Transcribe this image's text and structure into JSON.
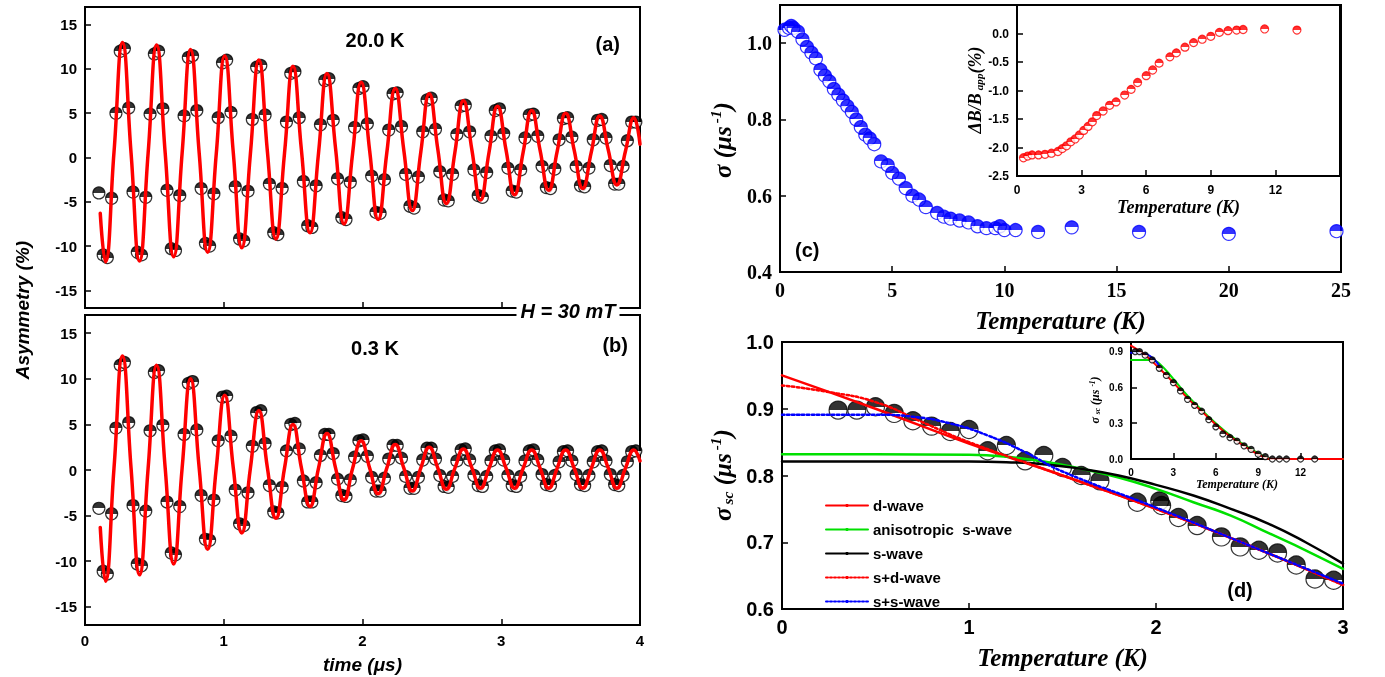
{
  "chart_data": [
    {
      "type": "scatter",
      "ylabel": "Asymmetry (%)",
      "annotations": [
        "20.0 K",
        "(a)",
        "H = 30 mT"
      ],
      "xlim": [
        0,
        4
      ],
      "xticks": [
        0,
        1,
        2,
        3,
        4
      ],
      "ylim": [
        -17,
        17
      ],
      "yticks": [
        -15,
        -10,
        -5,
        0,
        5,
        10,
        15
      ],
      "tick_labels": "y",
      "x": [
        0.1,
        0.131,
        0.161,
        0.192,
        0.223,
        0.254,
        0.284,
        0.315,
        0.346,
        0.377,
        0.407,
        0.438,
        0.469,
        0.5,
        0.53,
        0.561,
        0.591,
        0.622,
        0.652,
        0.683,
        0.714,
        0.745,
        0.775,
        0.806,
        0.837,
        0.868,
        0.898,
        0.929,
        0.96,
        0.991,
        1.021,
        1.052,
        1.083,
        1.114,
        1.144,
        1.175,
        1.206,
        1.237,
        1.267,
        1.298,
        1.329,
        1.36,
        1.39,
        1.421,
        1.452,
        1.483,
        1.513,
        1.544,
        1.574,
        1.605,
        1.635,
        1.666,
        1.697,
        1.728,
        1.758,
        1.789,
        1.82,
        1.851,
        1.881,
        1.912,
        1.943,
        1.974,
        2.004,
        2.035,
        2.066,
        2.097,
        2.127,
        2.158,
        2.189,
        2.22,
        2.25,
        2.281,
        2.311,
        2.342,
        2.372,
        2.403,
        2.434,
        2.465,
        2.495,
        2.526,
        2.557,
        2.588,
        2.618,
        2.649,
        2.68,
        2.711,
        2.741,
        2.772,
        2.803,
        2.834,
        2.864,
        2.895,
        2.926,
        2.957,
        2.987,
        3.018,
        3.048,
        3.079,
        3.109,
        3.14,
        3.171,
        3.202,
        3.232,
        3.263,
        3.294,
        3.325,
        3.355,
        3.386,
        3.417,
        3.448,
        3.478,
        3.509,
        3.54,
        3.571,
        3.601,
        3.632,
        3.663,
        3.694,
        3.724,
        3.755,
        3.786,
        3.817,
        3.847,
        3.878,
        3.909,
        3.94,
        3.97
      ],
      "series": [
        {
          "marker": "circle",
          "color": "#000000",
          "values": [
            -4.0,
            -11.0,
            -11.3,
            -4.6,
            5.0,
            12.0,
            12.3,
            5.6,
            -3.9,
            -10.7,
            -11.0,
            -4.5,
            4.9,
            11.7,
            12.0,
            5.5,
            -3.7,
            -10.3,
            -10.5,
            -4.3,
            4.7,
            11.3,
            11.5,
            5.3,
            -3.5,
            -9.7,
            -10.0,
            -4.1,
            4.5,
            10.7,
            11.0,
            5.1,
            -3.3,
            -9.2,
            -9.4,
            -3.8,
            4.3,
            10.2,
            10.4,
            4.8,
            -3.0,
            -8.5,
            -8.7,
            -3.5,
            4.0,
            9.5,
            9.7,
            4.5,
            -2.7,
            -7.7,
            -7.9,
            -3.2,
            3.7,
            8.7,
            8.9,
            4.2,
            -2.4,
            -6.8,
            -7.0,
            -2.8,
            3.4,
            7.8,
            8.0,
            3.8,
            -2.1,
            -6.2,
            -6.3,
            -2.5,
            3.1,
            7.2,
            7.3,
            3.5,
            -1.9,
            -5.5,
            -5.7,
            -2.2,
            2.9,
            6.5,
            6.7,
            3.2,
            -1.6,
            -4.8,
            -4.9,
            -1.9,
            2.6,
            5.8,
            5.9,
            2.9,
            -1.4,
            -4.3,
            -4.5,
            -1.7,
            2.4,
            5.3,
            5.5,
            2.7,
            -1.2,
            -3.8,
            -3.9,
            -1.4,
            2.2,
            4.8,
            4.9,
            2.4,
            -1.0,
            -3.4,
            -3.5,
            -1.3,
            2.0,
            4.4,
            4.5,
            2.3,
            -1.0,
            -3.2,
            -3.3,
            -1.2,
            2.0,
            4.2,
            4.3,
            2.2,
            -0.9,
            -3.0,
            -3.0,
            -1.0,
            1.9,
            4.0,
            4.0
          ]
        },
        {
          "type": "line",
          "color": "#ff0000",
          "x": [
            0.11,
            0.147,
            0.209,
            0.27,
            0.332,
            0.393,
            0.455,
            0.516,
            0.578,
            0.639,
            0.7,
            0.761,
            0.823,
            0.884,
            0.946,
            1.007,
            1.069,
            1.13,
            1.192,
            1.253,
            1.315,
            1.376,
            1.438,
            1.499,
            1.56,
            1.622,
            1.683,
            1.744,
            1.806,
            1.867,
            1.929,
            1.99,
            2.052,
            2.113,
            2.175,
            2.236,
            2.298,
            2.359,
            2.42,
            2.481,
            2.543,
            2.604,
            2.666,
            2.727,
            2.789,
            2.85,
            2.912,
            2.973,
            3.035,
            3.096,
            3.158,
            3.219,
            3.28,
            3.342,
            3.403,
            3.464,
            3.526,
            3.587,
            3.649,
            3.71,
            3.772,
            3.833,
            3.895,
            3.956,
            4.0
          ],
          "values": [
            -6.3,
            -11.8,
            0.6,
            13,
            0.5,
            -11.7,
            0.5,
            12.7,
            0.5,
            -11.2,
            0.5,
            12.2,
            0.5,
            -10.7,
            0.4,
            11.5,
            0.5,
            -10.2,
            0.4,
            11,
            0.6,
            -9.2,
            0.5,
            10.3,
            0.8,
            -8.5,
            0.5,
            9.5,
            1,
            -7.5,
            0.5,
            8.5,
            0.7,
            -7,
            0.5,
            7.8,
            0.8,
            -6,
            0.6,
            7.2,
            0.9,
            -5.2,
            0.6,
            6.4,
            0.8,
            -4.8,
            0.6,
            5.8,
            0.8,
            -4.2,
            0.6,
            5.3,
            0.8,
            -3.7,
            0.7,
            5,
            0.8,
            -3.5,
            0.6,
            4.7,
            0.8,
            -3.1,
            0.7,
            4.5,
            1.5
          ]
        }
      ]
    },
    {
      "type": "scatter",
      "xlabel": "time (μs)",
      "annotations": [
        "0.3 K",
        "(b)"
      ],
      "xlim": [
        0,
        4
      ],
      "xticks": [
        0,
        1,
        2,
        3,
        4
      ],
      "ylim": [
        -17,
        17
      ],
      "yticks": [
        -15,
        -10,
        -5,
        0,
        5,
        10,
        15
      ],
      "x": [
        0.1,
        0.131,
        0.161,
        0.192,
        0.223,
        0.254,
        0.284,
        0.315,
        0.346,
        0.377,
        0.407,
        0.438,
        0.469,
        0.5,
        0.53,
        0.561,
        0.591,
        0.622,
        0.652,
        0.683,
        0.714,
        0.745,
        0.775,
        0.806,
        0.837,
        0.868,
        0.898,
        0.929,
        0.96,
        0.991,
        1.021,
        1.052,
        1.083,
        1.114,
        1.144,
        1.175,
        1.206,
        1.237,
        1.267,
        1.298,
        1.329,
        1.36,
        1.39,
        1.421,
        1.452,
        1.483,
        1.513,
        1.544,
        1.574,
        1.605,
        1.635,
        1.666,
        1.697,
        1.728,
        1.758,
        1.789,
        1.82,
        1.851,
        1.881,
        1.912,
        1.943,
        1.974,
        2.004,
        2.035,
        2.066,
        2.097,
        2.127,
        2.158,
        2.189,
        2.22,
        2.25,
        2.281,
        2.311,
        2.342,
        2.372,
        2.403,
        2.434,
        2.465,
        2.495,
        2.526,
        2.557,
        2.588,
        2.618,
        2.649,
        2.68,
        2.711,
        2.741,
        2.772,
        2.803,
        2.834,
        2.864,
        2.895,
        2.926,
        2.957,
        2.987,
        3.018,
        3.048,
        3.079,
        3.109,
        3.14,
        3.171,
        3.202,
        3.232,
        3.263,
        3.294,
        3.325,
        3.355,
        3.386,
        3.417,
        3.448,
        3.478,
        3.509,
        3.54,
        3.571,
        3.601,
        3.632,
        3.663,
        3.694,
        3.724,
        3.755,
        3.786,
        3.817,
        3.847,
        3.878,
        3.909,
        3.94,
        3.97
      ],
      "series": [
        {
          "marker": "circle",
          "color": "#000000",
          "values": [
            -4.2,
            -11.1,
            -11.4,
            -4.8,
            4.6,
            11.5,
            11.8,
            5.2,
            -3.9,
            -10.3,
            -10.5,
            -4.5,
            4.3,
            10.7,
            10.9,
            4.9,
            -3.5,
            -9.1,
            -9.3,
            -4.0,
            3.9,
            9.5,
            9.7,
            4.4,
            -2.8,
            -7.6,
            -7.7,
            -3.3,
            3.2,
            8.0,
            8.1,
            3.7,
            -2.2,
            -5.9,
            -6.1,
            -2.5,
            2.6,
            6.3,
            6.5,
            2.9,
            -1.7,
            -4.6,
            -4.7,
            -1.9,
            2.1,
            5.0,
            5.1,
            2.3,
            -1.2,
            -3.5,
            -3.5,
            -1.4,
            1.6,
            3.9,
            3.9,
            1.8,
            -1.0,
            -2.8,
            -2.9,
            -1.1,
            1.4,
            3.2,
            3.3,
            1.5,
            -0.8,
            -2.3,
            -2.3,
            -0.9,
            1.2,
            2.7,
            2.7,
            1.3,
            -0.7,
            -2.0,
            -2.0,
            -0.8,
            1.1,
            2.4,
            2.4,
            1.2,
            -0.6,
            -1.8,
            -1.9,
            -0.7,
            1.0,
            2.2,
            2.3,
            1.1,
            -0.6,
            -1.7,
            -1.8,
            -0.7,
            1.0,
            2.1,
            2.2,
            1.1,
            -0.6,
            -1.7,
            -1.8,
            -0.7,
            1.0,
            2.1,
            2.2,
            1.1,
            -0.5,
            -1.6,
            -1.7,
            -0.6,
            0.9,
            2.0,
            2.1,
            1.0,
            -0.5,
            -1.6,
            -1.7,
            -0.6,
            0.9,
            2.0,
            2.1,
            1.0,
            -0.5,
            -1.6,
            -1.7,
            -0.6,
            0.9,
            2.0,
            2.1
          ]
        },
        {
          "type": "line",
          "color": "#ff0000",
          "x": [
            0.11,
            0.147,
            0.209,
            0.27,
            0.332,
            0.393,
            0.455,
            0.516,
            0.578,
            0.639,
            0.7,
            0.761,
            0.823,
            0.884,
            0.946,
            1.007,
            1.069,
            1.13,
            1.192,
            1.253,
            1.315,
            1.376,
            1.438,
            1.499,
            1.56,
            1.622,
            1.683,
            1.744,
            1.806,
            1.867,
            1.929,
            1.99,
            2.052,
            2.113,
            2.175,
            2.236,
            2.298,
            2.359,
            2.42,
            2.481,
            2.543,
            2.604,
            2.666,
            2.727,
            2.789,
            2.85,
            2.912,
            2.973,
            3.035,
            3.096,
            3.158,
            3.219,
            3.28,
            3.342,
            3.403,
            3.464,
            3.526,
            3.587,
            3.649,
            3.71,
            3.772,
            3.833,
            3.895,
            3.956,
            4.0
          ],
          "values": [
            -6.3,
            -12.2,
            0.2,
            12.5,
            0.2,
            -11.5,
            0.2,
            11.5,
            0.2,
            -10.3,
            0.2,
            10,
            0.2,
            -8.7,
            0.2,
            8.2,
            0.2,
            -6.9,
            0.2,
            6.5,
            0.2,
            -5.3,
            0.2,
            5,
            0.2,
            -4,
            0.2,
            4,
            0.2,
            -3.3,
            0.2,
            3.2,
            0.2,
            -2.6,
            0.2,
            2.8,
            0.2,
            -2.3,
            0.2,
            2.5,
            0.2,
            -2.1,
            0.2,
            2.3,
            0.2,
            -2,
            0.2,
            2.2,
            0.2,
            -2,
            0.2,
            2.2,
            0.2,
            -2,
            0.2,
            2.2,
            0.2,
            -2,
            0.2,
            2.2,
            0.2,
            -2,
            0.2,
            2.2,
            1
          ]
        }
      ]
    },
    {
      "type": "scatter",
      "xlabel": "Temperature (K)",
      "ylabel": "σ (μs$^{-1}$)",
      "annotations": [
        "(c)"
      ],
      "xlim": [
        0,
        25
      ],
      "xticks": [
        0,
        5,
        10,
        15,
        20,
        25
      ],
      "ylim": [
        0.4,
        1.1
      ],
      "yticks": [
        0.4,
        0.6,
        0.8,
        {
          "value": 1,
          "label": "1.0"
        }
      ],
      "marker": "circle",
      "series": [
        {
          "color": "#0000ff",
          "x": [
            0.2,
            0.4,
            0.5,
            0.6,
            0.8,
            1.0,
            1.2,
            1.4,
            1.6,
            1.8,
            2.0,
            2.2,
            2.4,
            2.6,
            2.8,
            3.0,
            3.2,
            3.4,
            3.6,
            3.8,
            4.0,
            4.2,
            4.5,
            4.8,
            5.0,
            5.3,
            5.6,
            5.9,
            6.2,
            6.5,
            7.0,
            7.3,
            7.6,
            8.0,
            8.4,
            8.8,
            9.2,
            9.6,
            9.8,
            10.0,
            10.5,
            11.5,
            13,
            16,
            20,
            24.8
          ],
          "values": [
            1.035,
            1.04,
            1.045,
            1.04,
            1.03,
            1.01,
            0.99,
            0.975,
            0.96,
            0.93,
            0.915,
            0.9,
            0.88,
            0.865,
            0.85,
            0.835,
            0.82,
            0.8,
            0.78,
            0.76,
            0.75,
            0.735,
            0.69,
            0.68,
            0.66,
            0.645,
            0.62,
            0.6,
            0.59,
            0.57,
            0.555,
            0.545,
            0.54,
            0.535,
            0.53,
            0.52,
            0.515,
            0.515,
            0.52,
            0.51,
            0.51,
            0.505,
            0.517,
            0.505,
            0.5,
            0.507
          ]
        }
      ]
    },
    {
      "type": "scatter",
      "xlabel": "Temperature (K)",
      "ylabel": "ΔB/B$_{app}$(%)",
      "xlim": [
        0,
        15
      ],
      "xticks": [
        0,
        3,
        6,
        9,
        12
      ],
      "ylim": [
        -2.5,
        0.5
      ],
      "yticks": [
        -2.5,
        {
          "value": -2,
          "label": "-2.0"
        },
        -1.5,
        {
          "value": -1,
          "label": "-1.0"
        },
        -0.5,
        {
          "value": 0,
          "label": "0.0"
        }
      ],
      "marker": "circle",
      "series": [
        {
          "color": "#ff0000",
          "x": [
            0.3,
            0.5,
            0.7,
            1.0,
            1.3,
            1.6,
            1.9,
            2.1,
            2.3,
            2.5,
            2.7,
            2.9,
            3.1,
            3.3,
            3.5,
            3.7,
            4.0,
            4.3,
            4.6,
            5.0,
            5.3,
            5.6,
            6.0,
            6.3,
            6.6,
            7.1,
            7.4,
            7.8,
            8.2,
            8.6,
            9.0,
            9.4,
            9.8,
            10.2,
            10.5,
            11.5,
            13
          ],
          "values": [
            -2.18,
            -2.15,
            -2.13,
            -2.13,
            -2.12,
            -2.1,
            -2.07,
            -2.02,
            -1.97,
            -1.9,
            -1.85,
            -1.78,
            -1.7,
            -1.63,
            -1.55,
            -1.44,
            -1.36,
            -1.26,
            -1.2,
            -1.08,
            -0.98,
            -0.86,
            -0.74,
            -0.64,
            -0.52,
            -0.41,
            -0.34,
            -0.24,
            -0.16,
            -0.1,
            -0.05,
            0.02,
            0.05,
            0.06,
            0.07,
            0.08,
            0.06
          ]
        }
      ]
    },
    {
      "type": "line",
      "xlabel": "Temperature (K)",
      "ylabel": "σ$_{sc}$ (μs$^{-1}$)",
      "annotations": [
        "(d)"
      ],
      "xlim": [
        0,
        3
      ],
      "xticks": [
        0,
        1,
        2,
        3
      ],
      "ylim": [
        0.6,
        1.0
      ],
      "yticks": [
        0.6,
        0.7,
        0.8,
        0.9,
        {
          "value": 1,
          "label": "1.0"
        }
      ],
      "legend": "bottom left",
      "series": [
        {
          "type": "scatter",
          "marker": "circle",
          "color": "#000000",
          "x": [
            0.3,
            0.4,
            0.5,
            0.6,
            0.7,
            0.8,
            0.9,
            1.0,
            1.1,
            1.2,
            1.3,
            1.4,
            1.5,
            1.6,
            1.7,
            1.9,
            2.02,
            2.03,
            2.12,
            2.22,
            2.35,
            2.45,
            2.55,
            2.65,
            2.75,
            2.85,
            2.95
          ],
          "values": [
            0.898,
            0.898,
            0.903,
            0.893,
            0.882,
            0.874,
            0.866,
            0.869,
            0.837,
            0.845,
            0.822,
            0.83,
            0.812,
            0.8,
            0.792,
            0.76,
            0.762,
            0.755,
            0.737,
            0.725,
            0.708,
            0.693,
            0.688,
            0.684,
            0.666,
            0.645,
            0.643
          ]
        },
        {
          "name": "d-wave",
          "color": "#ff0000",
          "line_style": "solid",
          "x": [
            0,
            0.5,
            1,
            1.5,
            2,
            2.5,
            3
          ],
          "values": [
            0.95,
            0.9,
            0.848,
            0.8,
            0.75,
            0.695,
            0.636
          ]
        },
        {
          "name": "anisotropic  s-wave",
          "color": "#00e000",
          "line_style": "solid",
          "x": [
            0,
            0.5,
            1,
            1.2,
            1.4,
            1.6,
            1.8,
            2.0,
            2.2,
            2.4,
            2.6,
            2.8,
            3.0
          ],
          "values": [
            0.832,
            0.832,
            0.831,
            0.828,
            0.821,
            0.81,
            0.797,
            0.78,
            0.76,
            0.74,
            0.714,
            0.688,
            0.66
          ]
        },
        {
          "name": "s-wave",
          "color": "#000000",
          "line_style": "solid",
          "x": [
            0,
            1,
            1.2,
            1.4,
            1.6,
            1.8,
            2.0,
            2.2,
            2.4,
            2.6,
            2.8,
            3.0
          ],
          "values": [
            0.821,
            0.821,
            0.82,
            0.817,
            0.81,
            0.8,
            0.786,
            0.77,
            0.75,
            0.728,
            0.7,
            0.668
          ]
        },
        {
          "name": "s+d-wave",
          "color": "#ff0000",
          "line_style": "dotted",
          "x": [
            0,
            0.25,
            0.5,
            0.75,
            1,
            1.5,
            2,
            2.5,
            3
          ],
          "values": [
            0.935,
            0.925,
            0.91,
            0.88,
            0.85,
            0.8,
            0.75,
            0.695,
            0.636
          ]
        },
        {
          "name": "s+s-wave",
          "color": "#0000ff",
          "line_style": "dotted",
          "x": [
            0,
            0.5,
            0.7,
            0.9,
            1.1,
            1.3,
            1.5,
            2,
            2.5,
            3
          ],
          "values": [
            0.891,
            0.891,
            0.888,
            0.878,
            0.86,
            0.835,
            0.806,
            0.752,
            0.695,
            0.638
          ]
        }
      ]
    },
    {
      "type": "line",
      "xlabel": "Temperature (K)",
      "ylabel": "σ$_{sc}$ (μs$^{-1}$)",
      "xlim": [
        0,
        15
      ],
      "xticks": [
        0,
        3,
        6,
        9,
        12
      ],
      "ylim": [
        0,
        0.98
      ],
      "yticks": [
        {
          "value": 0,
          "label": "0.0"
        },
        0.3,
        0.6,
        0.9
      ],
      "series": [
        {
          "type": "scatter",
          "marker": "circle",
          "color": "#000000",
          "x": [
            0.3,
            0.6,
            1,
            1.5,
            2,
            2.5,
            3,
            3.5,
            4,
            4.5,
            5,
            5.5,
            6,
            6.5,
            7,
            7.5,
            8,
            8.5,
            9,
            9.5,
            10,
            10.5,
            11,
            12,
            13
          ],
          "values": [
            0.9,
            0.9,
            0.87,
            0.83,
            0.76,
            0.7,
            0.64,
            0.57,
            0.5,
            0.45,
            0.4,
            0.33,
            0.27,
            0.21,
            0.18,
            0.15,
            0.11,
            0.08,
            0.04,
            0.02,
            0,
            0,
            0,
            0,
            0
          ]
        },
        {
          "color": "#00e000",
          "line_style": "solid",
          "x": [
            0,
            1.5,
            2,
            3,
            4,
            5,
            6,
            7,
            8,
            9,
            10,
            15
          ],
          "values": [
            0.83,
            0.83,
            0.8,
            0.67,
            0.53,
            0.41,
            0.3,
            0.2,
            0.12,
            0.05,
            0,
            0
          ]
        },
        {
          "color": "#0000ff",
          "line_style": "solid",
          "x": [
            0,
            1,
            2
          ],
          "values": [
            0.89,
            0.88,
            0.78
          ]
        },
        {
          "color": "#ff0000",
          "line_style": "solid",
          "x": [
            0,
            1,
            2,
            3,
            4,
            5,
            6,
            7,
            8,
            9,
            10,
            15
          ],
          "values": [
            0.95,
            0.87,
            0.76,
            0.64,
            0.51,
            0.4,
            0.29,
            0.19,
            0.11,
            0.04,
            0,
            0
          ]
        }
      ]
    }
  ]
}
